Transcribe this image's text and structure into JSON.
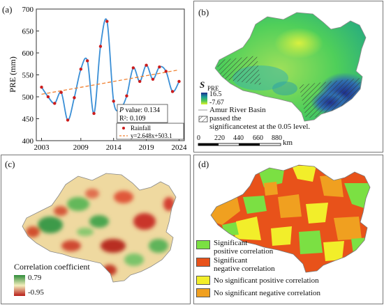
{
  "chart_data": {
    "type": "line",
    "panel_label": "(a)",
    "ylabel": "PRE (mm)",
    "ylim": [
      400,
      700
    ],
    "yticks": [
      "400",
      "450",
      "500",
      "550",
      "600",
      "650",
      "700"
    ],
    "xlim": [
      2002.2,
      2024.8
    ],
    "xticks": [
      "2003",
      "2009",
      "2014",
      "2019",
      "2024"
    ],
    "xtick_values": [
      2003,
      2009,
      2014,
      2019,
      2024
    ],
    "series": [
      {
        "name": "Rainfall",
        "x": [
          2003,
          2004,
          2005,
          2006,
          2007,
          2008,
          2009,
          2010,
          2011,
          2012,
          2013,
          2014,
          2015,
          2016,
          2017,
          2018,
          2019,
          2020,
          2021,
          2022,
          2023,
          2024
        ],
        "values": [
          522,
          500,
          485,
          510,
          447,
          498,
          563,
          582,
          462,
          615,
          672,
          490,
          473,
          502,
          566,
          535,
          572,
          540,
          568,
          558,
          512,
          535
        ],
        "color": "#cc1c1c"
      }
    ],
    "trend": {
      "slope": 2.648,
      "intercept": 503.1,
      "color": "#f08030"
    },
    "legend": {
      "rainfall": "Rainfall",
      "trend": "y=2.648x+503.1"
    },
    "stats": {
      "p_label": "P",
      "p_text": " value: 0.134",
      "r2": "R²: 0.109"
    },
    "smooth_color": "#3a8fd6"
  },
  "panel_b": {
    "label": "(b)",
    "legend_title_s": "S",
    "legend_title_sub": "PRE",
    "max": "16.5",
    "min": "-7.67",
    "basin": "Amur River Basin",
    "passed_line1": "passed the",
    "passed_line2": "significancetest at the 0.05 level.",
    "scale_ticks": [
      "0",
      "220",
      "440",
      "660",
      "880"
    ],
    "scale_unit": "km"
  },
  "panel_c": {
    "label": "(c)",
    "legend_title": "Correlation coefficient",
    "max": "0.79",
    "min": "-0.95"
  },
  "panel_d": {
    "label": "(d)",
    "items": [
      {
        "text1": "Significant",
        "text2": "positive correlation",
        "color": "#7be043"
      },
      {
        "text1": "Significant",
        "text2": "negative correlation",
        "color": "#e8521a"
      },
      {
        "text1": "No significant positive correlation",
        "text2": "",
        "color": "#f2ee2a"
      },
      {
        "text1": "No significant negative correlation",
        "text2": "",
        "color": "#f0a020"
      }
    ]
  }
}
